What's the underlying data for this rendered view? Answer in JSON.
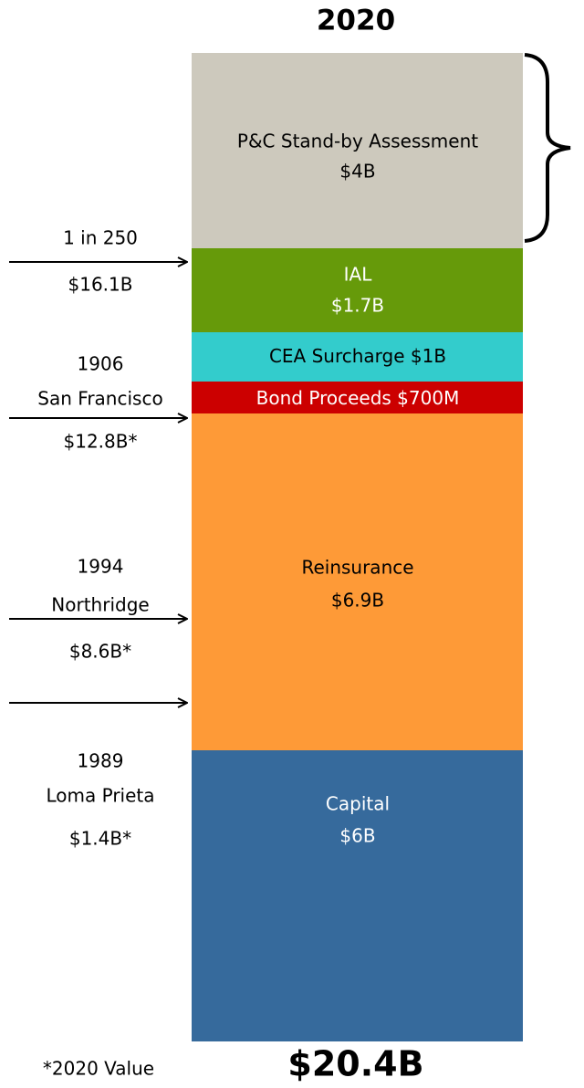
{
  "title": "2020",
  "layers": [
    {
      "name": "P&C Stand-by Assessment",
      "amount": "$4B"
    },
    {
      "name": "IAL",
      "amount": "$1.7B"
    },
    {
      "name": "CEA Surcharge",
      "amount": "$1B"
    },
    {
      "name": "Bond Proceeds",
      "amount": "$700M"
    },
    {
      "name": "Reinsurance",
      "amount": "$6.9B"
    },
    {
      "name": "Capital",
      "amount": "$6B"
    }
  ],
  "events": [
    {
      "lines": [
        "1 in 250"
      ],
      "loss": "$16.1B"
    },
    {
      "lines": [
        "1906",
        "San Francisco"
      ],
      "loss": "$12.8B*"
    },
    {
      "lines": [
        "1994",
        "Northridge"
      ],
      "loss": "$8.6B*"
    },
    {
      "lines": [
        "1989",
        "Loma Prieta"
      ],
      "loss": "$1.4B*"
    }
  ],
  "footnote": "*2020 Value",
  "total": "$20.4B"
}
